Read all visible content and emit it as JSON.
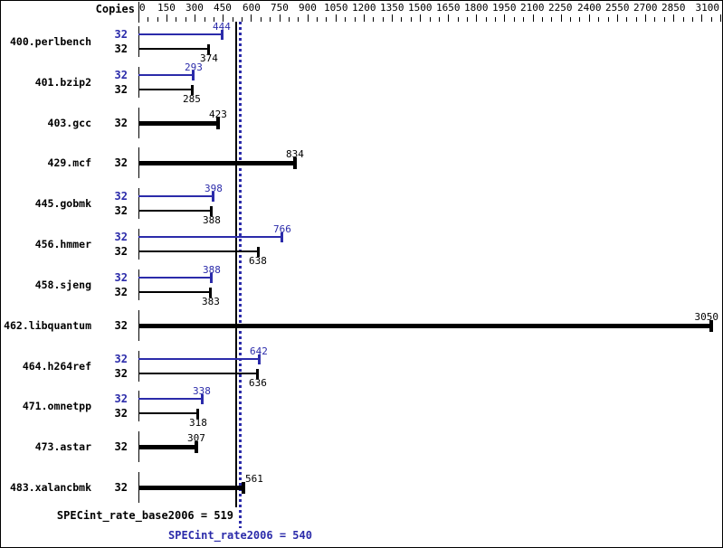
{
  "chart_data": {
    "type": "bar",
    "orientation": "horizontal",
    "title": "",
    "copies_header": "Copies",
    "axis": {
      "min": 0,
      "max": 3100,
      "major_step": 150,
      "minor_step": 50,
      "position": "top",
      "grid": false,
      "tick_labels": [
        0,
        150,
        300,
        450,
        600,
        750,
        900,
        1050,
        1200,
        1350,
        1500,
        1650,
        1800,
        1950,
        2100,
        2250,
        2400,
        2550,
        2700,
        2850,
        3100
      ]
    },
    "legend_position": "none",
    "benchmarks": [
      {
        "name": "400.perlbench",
        "rows": [
          {
            "series": "peak",
            "copies": 32,
            "value": 444
          },
          {
            "series": "base",
            "copies": 32,
            "value": 374
          }
        ]
      },
      {
        "name": "401.bzip2",
        "rows": [
          {
            "series": "peak",
            "copies": 32,
            "value": 293
          },
          {
            "series": "base",
            "copies": 32,
            "value": 285
          }
        ]
      },
      {
        "name": "403.gcc",
        "rows": [
          {
            "series": "base",
            "copies": 32,
            "value": 423
          }
        ]
      },
      {
        "name": "429.mcf",
        "rows": [
          {
            "series": "base",
            "copies": 32,
            "value": 834
          }
        ]
      },
      {
        "name": "445.gobmk",
        "rows": [
          {
            "series": "peak",
            "copies": 32,
            "value": 398
          },
          {
            "series": "base",
            "copies": 32,
            "value": 388
          }
        ]
      },
      {
        "name": "456.hmmer",
        "rows": [
          {
            "series": "peak",
            "copies": 32,
            "value": 766
          },
          {
            "series": "base",
            "copies": 32,
            "value": 638
          }
        ]
      },
      {
        "name": "458.sjeng",
        "rows": [
          {
            "series": "peak",
            "copies": 32,
            "value": 388
          },
          {
            "series": "base",
            "copies": 32,
            "value": 383
          }
        ]
      },
      {
        "name": "462.libquantum",
        "rows": [
          {
            "series": "base",
            "copies": 32,
            "value": 3050
          }
        ]
      },
      {
        "name": "464.h264ref",
        "rows": [
          {
            "series": "peak",
            "copies": 32,
            "value": 642
          },
          {
            "series": "base",
            "copies": 32,
            "value": 636
          }
        ]
      },
      {
        "name": "471.omnetpp",
        "rows": [
          {
            "series": "peak",
            "copies": 32,
            "value": 338
          },
          {
            "series": "base",
            "copies": 32,
            "value": 318
          }
        ]
      },
      {
        "name": "473.astar",
        "rows": [
          {
            "series": "base",
            "copies": 32,
            "value": 307
          }
        ]
      },
      {
        "name": "483.xalancbmk",
        "rows": [
          {
            "series": "base",
            "copies": 32,
            "value": 561
          }
        ]
      }
    ],
    "reference_lines": [
      {
        "name": "SPECint_rate_base2006",
        "label": "SPECint_rate_base2006 = 519",
        "value": 519,
        "style": "solid",
        "color": "#000000"
      },
      {
        "name": "SPECint_rate2006",
        "label": "SPECint_rate2006 = 540",
        "value": 540,
        "style": "dotted",
        "color": "#2b2baa"
      }
    ],
    "colors": {
      "base": "#000000",
      "peak": "#2b2baa",
      "background": "#ffffff"
    }
  }
}
